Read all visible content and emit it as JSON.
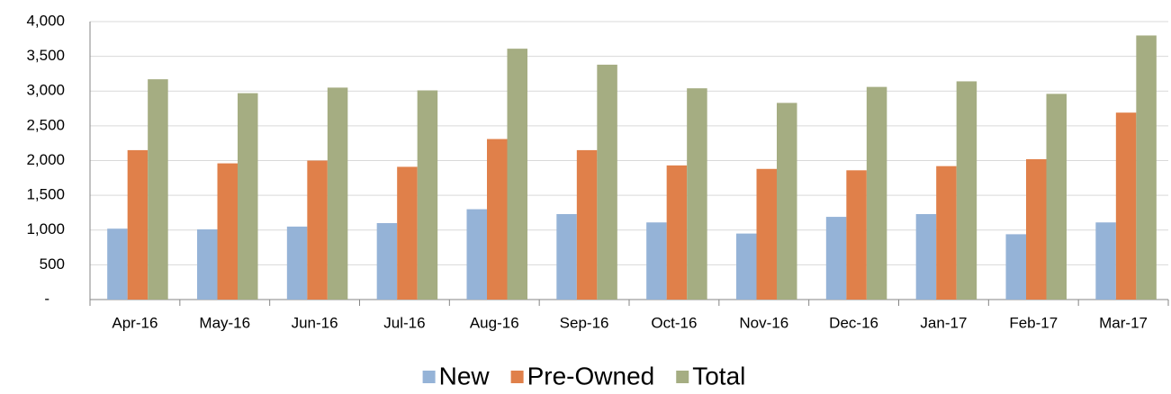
{
  "chart_data": {
    "type": "bar",
    "categories": [
      "Apr-16",
      "May-16",
      "Jun-16",
      "Jul-16",
      "Aug-16",
      "Sep-16",
      "Oct-16",
      "Nov-16",
      "Dec-16",
      "Jan-17",
      "Feb-17",
      "Mar-17"
    ],
    "series": [
      {
        "name": "New",
        "color": "#95b3d7",
        "values": [
          1020,
          1010,
          1050,
          1100,
          1300,
          1230,
          1110,
          950,
          1190,
          1230,
          940,
          1110
        ]
      },
      {
        "name": "Pre-Owned",
        "color": "#e0804a",
        "values": [
          2150,
          1960,
          2000,
          1910,
          2310,
          2150,
          1930,
          1880,
          1860,
          1920,
          2020,
          2690
        ]
      },
      {
        "name": "Total",
        "color": "#a5ad82",
        "values": [
          3170,
          2970,
          3050,
          3010,
          3610,
          3380,
          3040,
          2830,
          3060,
          3140,
          2960,
          3800
        ]
      }
    ],
    "ylim": [
      0,
      4000
    ],
    "yticks": [
      {
        "value": 0,
        "label": "-"
      },
      500,
      {
        "value": 1000,
        "label": "1,000"
      },
      {
        "value": 1500,
        "label": "1,500"
      },
      {
        "value": 2000,
        "label": "2,000"
      },
      {
        "value": 2500,
        "label": "2,500"
      },
      {
        "value": 3000,
        "label": "3,000"
      },
      {
        "value": 3500,
        "label": "3,500"
      },
      {
        "value": 4000,
        "label": "4,000"
      }
    ],
    "grid": true,
    "legend": "bottom"
  }
}
